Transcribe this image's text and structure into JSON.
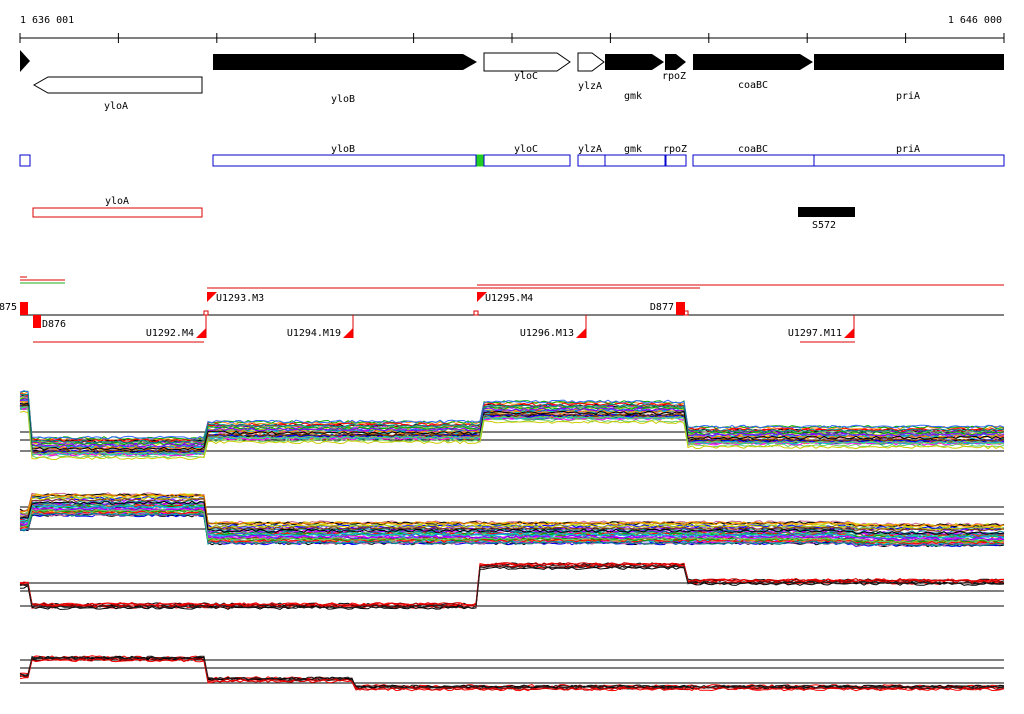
{
  "ruler": {
    "start_label": "1 636 001",
    "end_label": "1 646 000"
  },
  "genes": [
    {
      "name": "",
      "strand": "+",
      "label_style": "none"
    },
    {
      "name": "yloA",
      "strand": "-"
    },
    {
      "name": "yloB",
      "strand": "+"
    },
    {
      "name": "yloC",
      "strand": "+"
    },
    {
      "name": "ylzA",
      "strand": "+"
    },
    {
      "name": "gmk",
      "strand": "+"
    },
    {
      "name": "rpoZ",
      "strand": "+"
    },
    {
      "name": "coaBC",
      "strand": "+"
    },
    {
      "name": "priA",
      "strand": "+"
    }
  ],
  "blue_track": [
    "yloB",
    "yloC",
    "ylzA",
    "gmk",
    "rpoZ",
    "coaBC",
    "priA"
  ],
  "red_track": [
    "yloA"
  ],
  "black_feature": "S572",
  "segments_upper": [
    "875",
    "U1293.M3",
    "U1295.M4",
    "D877"
  ],
  "segments_lower": [
    "D876",
    "U1292.M4",
    "U1294.M19",
    "U1296.M13",
    "U1297.M11"
  ],
  "colors": {
    "gene_fill": "#000000",
    "gene_outline_fill": "#ffffff",
    "blue_track": "#0000cc",
    "red_track": "#dd0000",
    "green_mark": "#22cc22",
    "marker": "#ff0000"
  }
}
